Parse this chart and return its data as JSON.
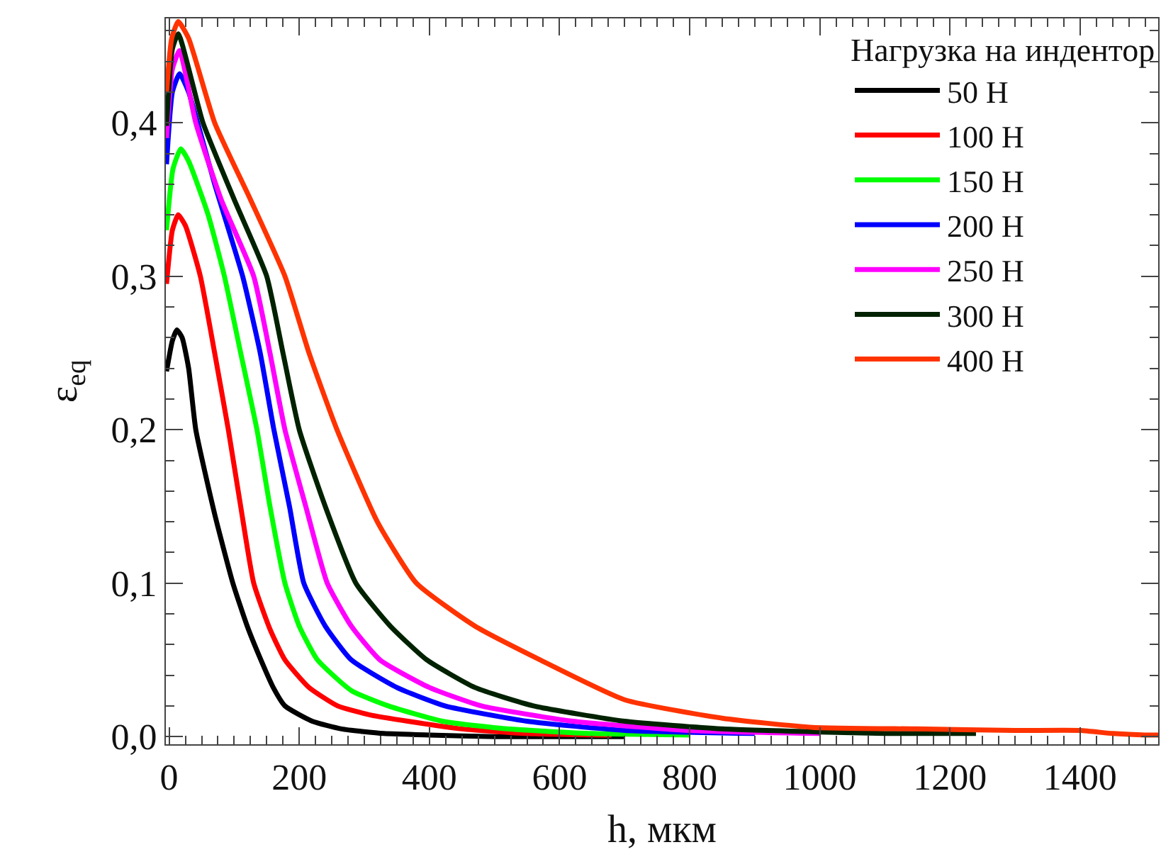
{
  "chart_data": {
    "type": "line",
    "xlabel": "h, мкм",
    "ylabel": "ε$_{eq}$",
    "legend_title": "Нагрузка на индентор",
    "legend": "top right",
    "marker": "none",
    "line_style": "solid",
    "xlim": [
      -5,
      1520
    ],
    "xticks": [
      0,
      200,
      400,
      600,
      800,
      1000,
      1200,
      1400
    ],
    "ylim": [
      -0.005,
      0.468
    ],
    "yticks": [
      {
        "value": 0,
        "label": "0,0"
      },
      {
        "value": 0.1,
        "label": "0,1"
      },
      {
        "value": 0.2,
        "label": "0,2"
      },
      {
        "value": 0.3,
        "label": "0,3"
      },
      {
        "value": 0.4,
        "label": "0,4"
      }
    ],
    "series": [
      {
        "name": "50 Н",
        "color": "#000000",
        "x": [
          -4,
          5,
          12,
          20,
          30,
          41,
          70,
          98,
          120,
          141,
          160,
          178,
          220,
          265,
          330,
          400,
          500,
          600,
          700
        ],
        "values": [
          0.238,
          0.258,
          0.265,
          0.26,
          0.24,
          0.2,
          0.145,
          0.1,
          0.072,
          0.05,
          0.032,
          0.02,
          0.01,
          0.005,
          0.002,
          0.001,
          0,
          0,
          0
        ]
      },
      {
        "name": "100 Н",
        "color": "#ff0000",
        "x": [
          -4,
          5,
          14,
          25,
          48,
          70,
          91,
          110,
          130,
          155,
          178,
          215,
          259,
          310,
          367,
          450,
          550,
          680
        ],
        "values": [
          0.295,
          0.33,
          0.34,
          0.333,
          0.3,
          0.25,
          0.2,
          0.15,
          0.1,
          0.07,
          0.05,
          0.032,
          0.02,
          0.014,
          0.01,
          0.005,
          0.002,
          0.001
        ]
      },
      {
        "name": "150 Н",
        "color": "#00ff00",
        "x": [
          -4,
          6,
          18,
          30,
          60,
          85,
          110,
          135,
          155,
          178,
          200,
          228,
          280,
          337,
          420,
          520,
          650,
          800
        ],
        "values": [
          0.33,
          0.37,
          0.383,
          0.375,
          0.34,
          0.3,
          0.25,
          0.2,
          0.15,
          0.1,
          0.072,
          0.05,
          0.03,
          0.02,
          0.01,
          0.005,
          0.002,
          0.001
        ]
      },
      {
        "name": "200 Н",
        "color": "#0000ff",
        "x": [
          -4,
          5,
          16,
          30,
          70,
          113,
          140,
          161,
          185,
          207,
          240,
          280,
          350,
          424,
          550,
          700,
          900
        ],
        "values": [
          0.373,
          0.42,
          0.432,
          0.42,
          0.36,
          0.3,
          0.25,
          0.2,
          0.15,
          0.1,
          0.072,
          0.05,
          0.032,
          0.02,
          0.01,
          0.004,
          0.002
        ]
      },
      {
        "name": "250 Н",
        "color": "#ff00ff",
        "x": [
          -4,
          5,
          16,
          41,
          80,
          130,
          155,
          178,
          210,
          243,
          280,
          324,
          400,
          480,
          620,
          800,
          1000
        ],
        "values": [
          0.39,
          0.435,
          0.447,
          0.4,
          0.35,
          0.3,
          0.25,
          0.2,
          0.15,
          0.1,
          0.072,
          0.05,
          0.032,
          0.02,
          0.01,
          0.004,
          0.002
        ]
      },
      {
        "name": "300 Н",
        "color": "#002200",
        "x": [
          -4,
          5,
          14,
          52,
          100,
          150,
          175,
          200,
          240,
          287,
          340,
          396,
          470,
          560,
          700,
          850,
          1000,
          1100,
          1240
        ],
        "values": [
          0.398,
          0.448,
          0.458,
          0.4,
          0.35,
          0.3,
          0.25,
          0.2,
          0.15,
          0.1,
          0.072,
          0.05,
          0.032,
          0.02,
          0.01,
          0.005,
          0.003,
          0.002,
          0.002
        ]
      },
      {
        "name": "400 Н",
        "color": "#ff3300",
        "x": [
          -4,
          4,
          14,
          30,
          70,
          125,
          178,
          215,
          258,
          320,
          380,
          470,
          570,
          700,
          850,
          989,
          1150,
          1300,
          1400,
          1450,
          1500,
          1520
        ],
        "values": [
          0.42,
          0.455,
          0.466,
          0.455,
          0.4,
          0.35,
          0.3,
          0.25,
          0.2,
          0.14,
          0.1,
          0.072,
          0.05,
          0.024,
          0.012,
          0.006,
          0.005,
          0.004,
          0.004,
          0.002,
          0.001,
          0.001
        ]
      }
    ]
  }
}
